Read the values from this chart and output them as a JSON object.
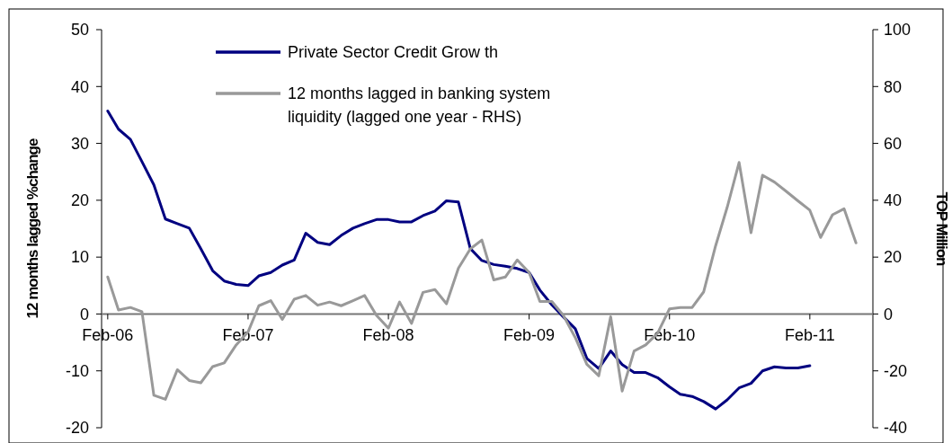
{
  "chart_data": {
    "type": "line",
    "ylabel": "12 months lagged %change",
    "y2label": "TOP Million",
    "xlim": [
      "2006-01-16",
      "2011-07-15"
    ],
    "xticks": [
      {
        "value": "2006-02",
        "label": "Feb-06"
      },
      {
        "value": "2007-02",
        "label": "Feb-07"
      },
      {
        "value": "2008-02",
        "label": "Feb-08"
      },
      {
        "value": "2009-02",
        "label": "Feb-09"
      },
      {
        "value": "2010-02",
        "label": "Feb-10"
      },
      {
        "value": "2011-02",
        "label": "Feb-11"
      }
    ],
    "ylim": [
      -20,
      50
    ],
    "yticks": [
      -20,
      -10,
      0,
      10,
      20,
      30,
      40,
      50
    ],
    "y2lim": [
      -40,
      100
    ],
    "y2ticks": [
      -40,
      -20,
      0,
      20,
      40,
      60,
      80,
      100
    ],
    "legend": "top left",
    "marker": "none",
    "line_style": "solid",
    "series": [
      {
        "name": "Private Sector Credit Grow th",
        "color": "#000080",
        "x": [
          "2006-02",
          "2006-03",
          "2006-04",
          "2006-05",
          "2006-06",
          "2006-07",
          "2006-08",
          "2006-09",
          "2006-10",
          "2006-11",
          "2006-12",
          "2007-01",
          "2007-02",
          "2007-03",
          "2007-04",
          "2007-05",
          "2007-06",
          "2007-07",
          "2007-08",
          "2007-09",
          "2007-10",
          "2007-11",
          "2007-12",
          "2008-01",
          "2008-02",
          "2008-03",
          "2008-04",
          "2008-05",
          "2008-06",
          "2008-07",
          "2008-08",
          "2008-09",
          "2008-10",
          "2008-11",
          "2008-12",
          "2009-01",
          "2009-02",
          "2009-03",
          "2009-04",
          "2009-05",
          "2009-06",
          "2009-07",
          "2009-08",
          "2009-09",
          "2009-10",
          "2009-11",
          "2009-12",
          "2010-01",
          "2010-02",
          "2010-03",
          "2010-04",
          "2010-05",
          "2010-06",
          "2010-07",
          "2010-08",
          "2010-09",
          "2010-10",
          "2010-11",
          "2010-12",
          "2011-01",
          "2011-02"
        ],
        "values": [
          35.7,
          32.5,
          30.7,
          26.8,
          22.7,
          16.7,
          15.9,
          15.1,
          11.5,
          7.6,
          5.8,
          5.2,
          5.0,
          6.7,
          7.3,
          8.6,
          9.5,
          14.2,
          12.6,
          12.2,
          13.8,
          15.1,
          15.9,
          16.6,
          16.6,
          16.2,
          16.2,
          17.3,
          18.1,
          19.9,
          19.7,
          11.5,
          9.4,
          8.7,
          8.4,
          8.0,
          7.3,
          4.2,
          1.6,
          -0.5,
          -2.6,
          -7.8,
          -9.6,
          -6.5,
          -8.9,
          -10.3,
          -10.3,
          -11.2,
          -12.8,
          -14.1,
          -14.5,
          -15.4,
          -16.7,
          -15.1,
          -13.0,
          -12.2,
          -10.0,
          -9.3,
          -9.5,
          -9.5,
          -9.1
        ]
      },
      {
        "name": "12 months lagged in banking system liquidity (lagged one year - RHS)",
        "color": "#999999",
        "axis": "y2",
        "x": [
          "2006-02",
          "2006-03",
          "2006-04",
          "2006-05",
          "2006-06",
          "2006-07",
          "2006-08",
          "2006-09",
          "2006-10",
          "2006-11",
          "2006-12",
          "2007-01",
          "2007-02",
          "2007-03",
          "2007-04",
          "2007-05",
          "2007-06",
          "2007-07",
          "2007-08",
          "2007-09",
          "2007-10",
          "2007-11",
          "2007-12",
          "2008-01",
          "2008-02",
          "2008-03",
          "2008-04",
          "2008-05",
          "2008-06",
          "2008-07",
          "2008-08",
          "2008-09",
          "2008-10",
          "2008-11",
          "2008-12",
          "2009-01",
          "2009-02",
          "2009-03",
          "2009-04",
          "2009-05",
          "2009-06",
          "2009-07",
          "2009-08",
          "2009-09",
          "2009-10",
          "2009-11",
          "2009-12",
          "2010-01",
          "2010-02",
          "2010-03",
          "2010-04",
          "2010-05",
          "2010-06",
          "2010-07",
          "2010-08",
          "2010-09",
          "2010-10",
          "2010-11",
          "2010-12",
          "2011-01",
          "2011-02",
          "2011-03",
          "2011-04",
          "2011-05",
          "2011-06"
        ],
        "values": [
          13.0,
          1.4,
          2.3,
          0.8,
          -28.6,
          -30.0,
          -19.6,
          -23.4,
          -24.2,
          -18.5,
          -17.2,
          -10.9,
          -6.3,
          2.9,
          4.7,
          -1.9,
          5.2,
          6.5,
          3.1,
          4.2,
          2.9,
          4.7,
          6.5,
          -0.5,
          -5.0,
          4.2,
          -3.3,
          7.6,
          8.6,
          3.6,
          16.1,
          22.9,
          26.0,
          12.0,
          13.0,
          19.0,
          14.6,
          4.4,
          4.4,
          -0.5,
          -8.3,
          -17.7,
          -21.7,
          -1.0,
          -27.1,
          -13.0,
          -10.9,
          -6.8,
          1.8,
          2.3,
          2.3,
          7.8,
          24.0,
          37.5,
          53.3,
          28.6,
          48.8,
          46.4,
          43.2,
          39.8,
          36.5,
          26.9,
          34.9,
          37.0,
          25.0
        ]
      }
    ]
  }
}
